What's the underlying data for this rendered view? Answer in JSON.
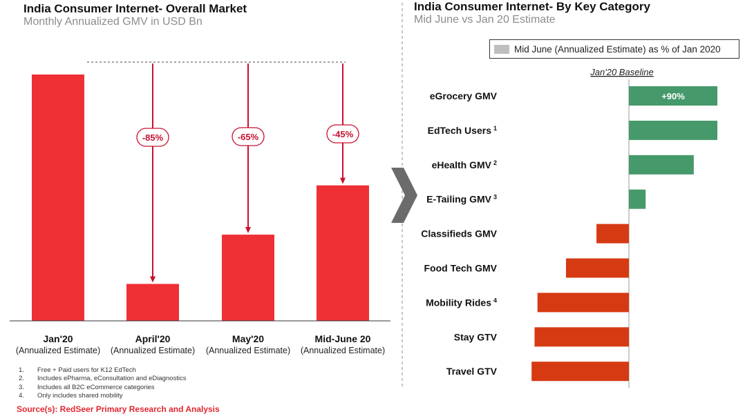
{
  "left": {
    "title": "India Consumer Internet- Overall Market",
    "subtitle": "Monthly Annualized GMV in USD Bn"
  },
  "right": {
    "title": "India Consumer Internet- By Key Category",
    "subtitle": "Mid June vs Jan 20 Estimate",
    "legend_label": "Mid June (Annualized Estimate)  as % of Jan 2020",
    "baseline_label": "Jan'20 Baseline"
  },
  "colors": {
    "bar_red": "#ee3035",
    "arrow_red": "#c8102e",
    "positive_green": "#46996a",
    "negative_orange": "#d63a12",
    "chevron_gray": "#6b6b6b"
  },
  "chevron_icon": "chevron-right-icon",
  "chart_data": [
    {
      "type": "bar",
      "categories": [
        "Jan'20",
        "April'20",
        "May'20",
        "Mid-June 20"
      ],
      "category_sublabels": [
        "(Annualized Estimate)",
        "(Annualized Estimate)",
        "(Annualized Estimate)",
        "(Annualized Estimate)"
      ],
      "values": [
        100,
        15,
        35,
        55
      ],
      "annotations": [
        null,
        "-85%",
        "-65%",
        "-45%"
      ],
      "title": "India Consumer Internet- Overall Market",
      "subtitle": "Monthly Annualized GMV in USD Bn",
      "ylim": [
        0,
        100
      ],
      "grid": false
    },
    {
      "type": "bar",
      "orientation": "horizontal",
      "categories": [
        "eGrocery GMV",
        "EdTech Users",
        "eHealth GMV",
        "E-Tailing GMV",
        "Classifieds GMV",
        "Food Tech GMV",
        "Mobility Rides",
        "Stay GTV",
        "Travel GTV"
      ],
      "superscripts": [
        "",
        "1",
        "2",
        "3",
        "",
        "",
        "4",
        "",
        ""
      ],
      "values": [
        90,
        90,
        66,
        17,
        -33,
        -64,
        -93,
        -96,
        -99
      ],
      "data_labels": [
        "+90%",
        "",
        "",
        "",
        "",
        "",
        "",
        "",
        ""
      ],
      "xlim": [
        -105,
        95
      ],
      "baseline": 0,
      "title": "India Consumer Internet- By Key Category",
      "subtitle": "Mid June vs Jan 20 Estimate",
      "legend": "Mid June (Annualized Estimate)  as % of Jan 2020",
      "legend_position": "top-right",
      "grid": false
    }
  ],
  "footnotes": [
    {
      "num": "1.",
      "text": "Free + Paid users for K12 EdTech"
    },
    {
      "num": "2.",
      "text": "Includes ePharma, eConsultation and eDiagnostics"
    },
    {
      "num": "3.",
      "text": "Includes all B2C eCommerce categories"
    },
    {
      "num": "4.",
      "text": "Only includes shared mobility"
    }
  ],
  "source": "Source(s): RedSeer Primary Research and Analysis"
}
